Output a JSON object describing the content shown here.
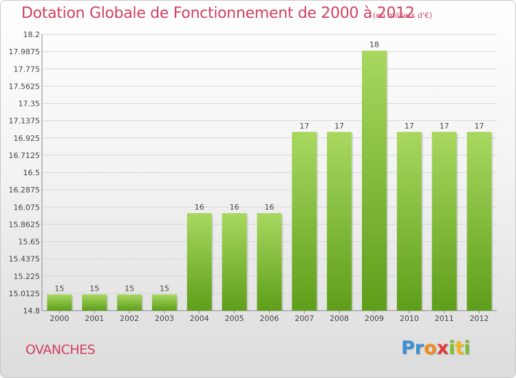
{
  "title": "Dotation Globale de Fonctionnement de 2000 à 2012",
  "subtitle": "(en milliers d'€)",
  "commune": "OVANCHES",
  "logo": "Proxiti",
  "colors": {
    "title": "#d04060",
    "bar_light": "#a8d860",
    "bar_dark": "#5e9e1a"
  },
  "chart_data": {
    "type": "bar",
    "title": "Dotation Globale de Fonctionnement de 2000 à 2012",
    "subtitle": "(en milliers d'€)",
    "xlabel": "",
    "ylabel": "",
    "categories": [
      "2000",
      "2001",
      "2002",
      "2003",
      "2004",
      "2005",
      "2006",
      "2007",
      "2008",
      "2009",
      "2010",
      "2011",
      "2012"
    ],
    "values": [
      15,
      15,
      15,
      15,
      16,
      16,
      16,
      17,
      17,
      18,
      17,
      17,
      17
    ],
    "ylim": [
      14.8,
      18.2
    ],
    "yticks": [
      "14.8",
      "15.0125",
      "15.225",
      "15.4375",
      "15.65",
      "15.8625",
      "16.075",
      "16.2875",
      "16.5",
      "16.7125",
      "16.925",
      "17.1375",
      "17.35",
      "17.5625",
      "17.775",
      "17.9875",
      "18.2"
    ],
    "grid": true,
    "legend": "none"
  }
}
